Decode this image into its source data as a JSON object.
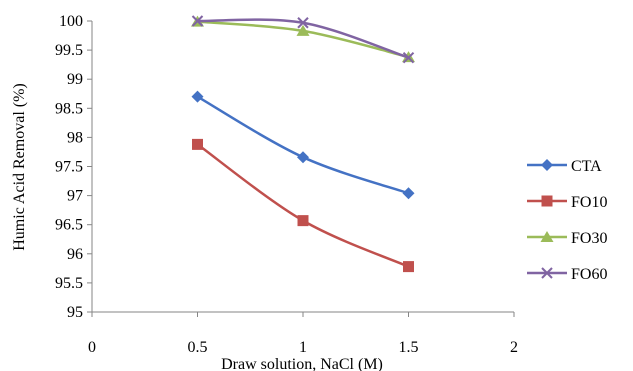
{
  "chart_data": {
    "type": "line",
    "title": "",
    "xlabel": "Draw solution, NaCl (M)",
    "ylabel": "Humic Acid Removal (%)",
    "xlim": [
      0,
      2
    ],
    "ylim": [
      95,
      100
    ],
    "x_ticks": [
      "0",
      "0.5",
      "1",
      "1.5",
      "2"
    ],
    "y_ticks": [
      "95",
      "95.5",
      "96",
      "96.5",
      "97",
      "97.5",
      "98",
      "98.5",
      "99",
      "99.5",
      "100"
    ],
    "grid": false,
    "legend_position": "right",
    "x": [
      0.5,
      1,
      1.5
    ],
    "series": [
      {
        "name": "CTA",
        "values": [
          98.7,
          97.66,
          97.04
        ],
        "color": "#4472C4",
        "marker": "diamond"
      },
      {
        "name": "FO10",
        "values": [
          97.88,
          96.57,
          95.78
        ],
        "color": "#C0504D",
        "marker": "square"
      },
      {
        "name": "FO30",
        "values": [
          99.99,
          99.83,
          99.38
        ],
        "color": "#9BBB59",
        "marker": "triangle"
      },
      {
        "name": "FO60",
        "values": [
          100.0,
          99.97,
          99.37
        ],
        "color": "#8064A2",
        "marker": "x"
      }
    ]
  }
}
